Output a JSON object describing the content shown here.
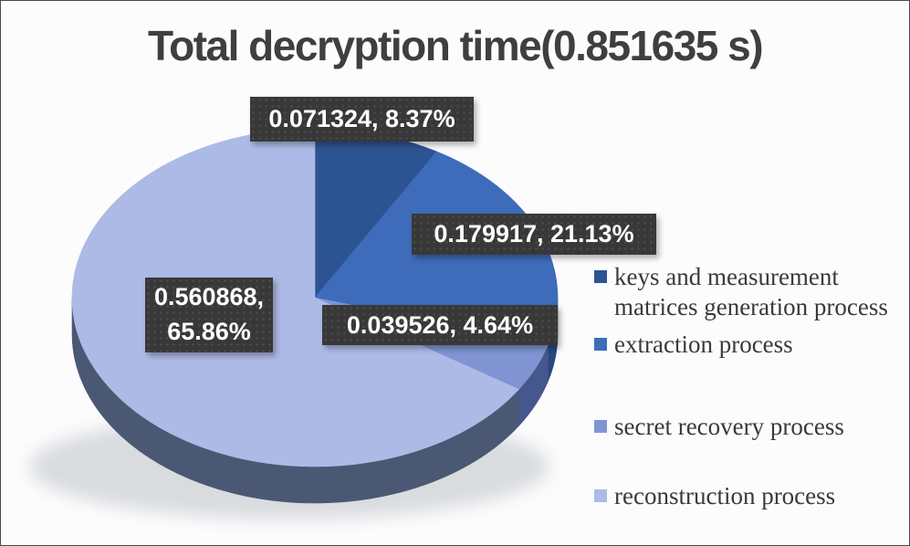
{
  "title": "Total decryption time(0.851635 s)",
  "chart_data": {
    "type": "pie",
    "style": "3d",
    "title": "Total decryption time(0.851635 s)",
    "total": "0.851635 s",
    "unit": "s",
    "start_angle_deg": 0,
    "direction": "clockwise",
    "legend_position": "right",
    "series": [
      {
        "name": "keys and measurement matrices generation process",
        "value": 0.071324,
        "pct": 8.37,
        "color": "#2d5492",
        "side_color": "#23406e"
      },
      {
        "name": "extraction process",
        "value": 0.179917,
        "pct": 21.13,
        "color": "#3e6cbb",
        "side_color": "#28487f"
      },
      {
        "name": "secret recovery process",
        "value": 0.039526,
        "pct": 4.64,
        "color": "#8094d4",
        "side_color": "#45578d"
      },
      {
        "name": "reconstruction process",
        "value": 0.560868,
        "pct": 65.86,
        "color": "#aebae6",
        "side_color": "#4a5873"
      }
    ],
    "labels": {
      "l1": "0.071324, 8.37%",
      "l2": "0.179917, 21.13%",
      "l3": "0.039526, 4.64%",
      "l4": "0.560868, 65.86%"
    }
  },
  "legend": {
    "items": [
      {
        "label": "keys and measurement matrices generation process"
      },
      {
        "label": "extraction process"
      },
      {
        "label": "secret recovery process"
      },
      {
        "label": "reconstruction process"
      }
    ]
  },
  "colors": {
    "title_text": "#3f3f3f",
    "label_box_bg": "#383838",
    "label_text": "#ffffff",
    "legend_text": "#3a3a3a",
    "pie_side_slate": "#4a5873",
    "shadow": "#9aa0a8"
  }
}
